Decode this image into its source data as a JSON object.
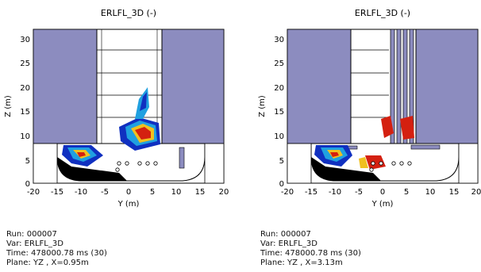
{
  "panels": [
    {
      "title": "ERLFL_3D (-)",
      "xlabel": "Y (m)",
      "ylabel": "Z (m)",
      "xticks": [
        "-20",
        "-15",
        "-10",
        "-5",
        "0",
        "5",
        "10",
        "15",
        "20"
      ],
      "yticks": [
        "0",
        "5",
        "10",
        "15",
        "20",
        "25",
        "30"
      ],
      "info": {
        "run": "Run: 000007",
        "var": "Var: ERLFL_3D",
        "time": "Time: 478000.78 ms (30)",
        "plane": "Plane: YZ , X=0.95m"
      }
    },
    {
      "title": "ERLFL_3D (-)",
      "xlabel": "Y (m)",
      "ylabel": "Z (m)",
      "xticks": [
        "-20",
        "-15",
        "-10",
        "-5",
        "0",
        "5",
        "10",
        "15",
        "20"
      ],
      "yticks": [
        "0",
        "5",
        "10",
        "15",
        "20",
        "25",
        "30"
      ],
      "info": {
        "run": "Run: 000007",
        "var": "Var: ERLFL_3D",
        "time": "Time: 478000.78 ms (30)",
        "plane": "Plane: YZ , X=3.13m"
      }
    }
  ],
  "colors": {
    "wall": "#8c8cbf",
    "floor": "#000000",
    "hot": "#d42010",
    "warm": "#f0c020",
    "cool": "#20a0e0",
    "cold": "#1030c0"
  }
}
